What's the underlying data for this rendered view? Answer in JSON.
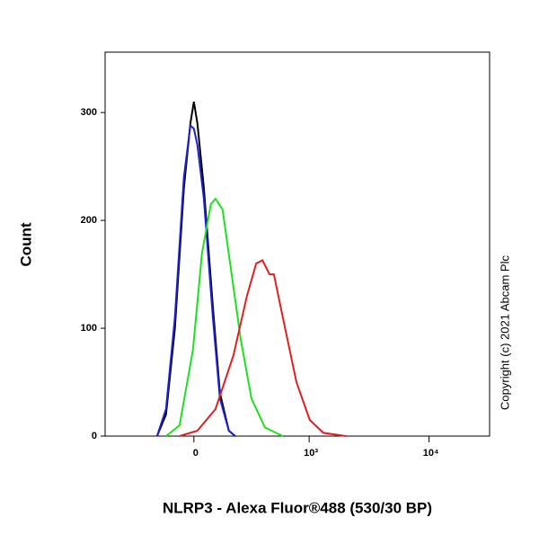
{
  "chart_data": {
    "type": "line",
    "x_label": "NLRP3 - Alexa Fluor®488 (530/30 BP)",
    "y_label": "Count",
    "annotation": "Copyright (c) 2021 Abcam Plc",
    "xscale": "biexponential",
    "xscale_width": 224,
    "xlim": [
      -590,
      31800
    ],
    "ylim": [
      0,
      356
    ],
    "xticks": [
      0,
      {
        "value": 1000,
        "label": "10³"
      },
      {
        "value": 10000,
        "label": "10⁴"
      }
    ],
    "yticks": [
      0,
      100,
      200,
      300
    ],
    "series": [
      {
        "color": "#000000",
        "x": [
          -171,
          -125,
          -83,
          -43,
          -15,
          0,
          15,
          43,
          83,
          116,
          161,
          196
        ],
        "values": [
          0,
          20,
          100,
          230,
          290,
          310,
          290,
          230,
          120,
          40,
          5,
          0
        ]
      },
      {
        "color": "#1f1fd0",
        "x": [
          -171,
          -125,
          -83,
          -43,
          -15,
          0,
          15,
          43,
          83,
          116,
          161,
          196
        ],
        "values": [
          0,
          25,
          110,
          240,
          288,
          285,
          270,
          220,
          110,
          35,
          5,
          0
        ]
      },
      {
        "color": "#1fe01f",
        "x": [
          -125,
          -62,
          -4,
          35,
          74,
          95,
          129,
          176,
          228,
          299,
          406,
          592
        ],
        "values": [
          0,
          10,
          80,
          170,
          215,
          220,
          210,
          150,
          90,
          35,
          8,
          0
        ]
      },
      {
        "color": "#e02020",
        "x": [
          -62,
          15,
          95,
          186,
          268,
          334,
          385,
          449,
          492,
          592,
          779,
          1012,
          1319,
          2036
        ],
        "values": [
          0,
          5,
          25,
          75,
          130,
          160,
          163,
          150,
          150,
          110,
          50,
          15,
          3,
          0
        ]
      }
    ]
  }
}
